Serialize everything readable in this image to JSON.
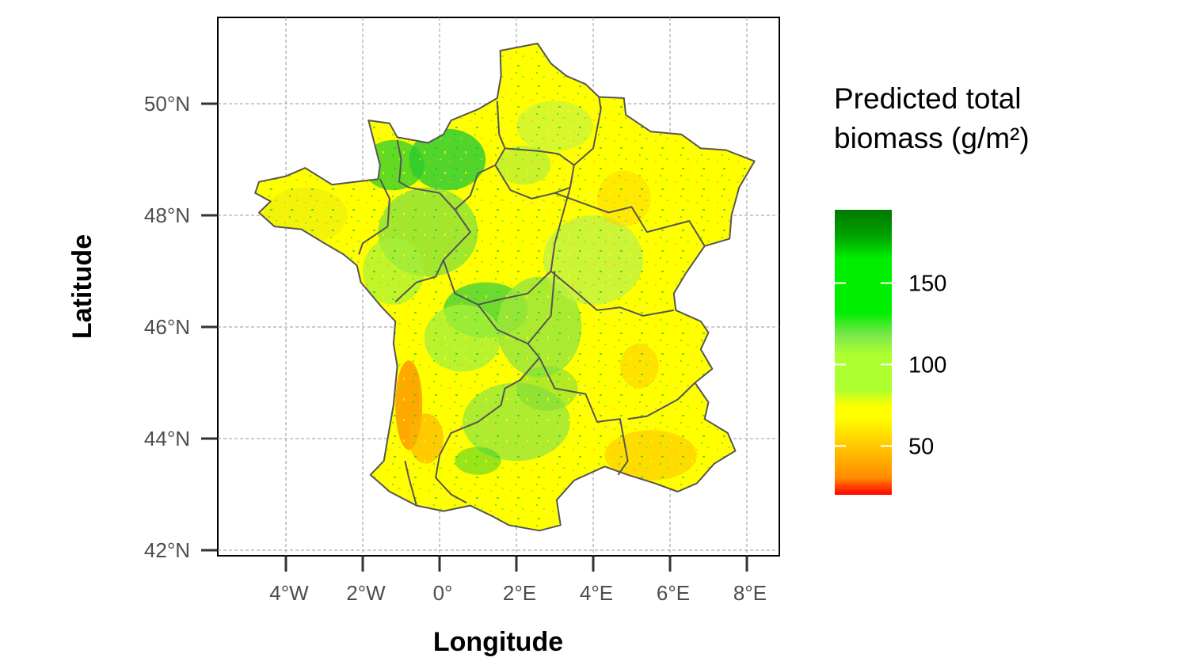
{
  "map": {
    "xlabel": "Longitude",
    "ylabel": "Latitude",
    "x_ticks": [
      "4°W",
      "2°W",
      "0°",
      "2°E",
      "4°E",
      "6°E",
      "8°E"
    ],
    "y_ticks": [
      "42°N",
      "44°N",
      "46°N",
      "48°N",
      "50°N"
    ],
    "x_range_deg": [
      -5.8,
      8.8
    ],
    "y_range_deg": [
      41.9,
      51.6
    ],
    "grid": true,
    "region": "France",
    "boundaries": "administrative regions"
  },
  "legend": {
    "title_line1": "Predicted total",
    "title_line2": "biomass (g/m²)",
    "ticks": [
      "150",
      "100",
      "50"
    ],
    "tick_values": [
      150,
      100,
      50
    ],
    "range": [
      20,
      195
    ],
    "placement": "right",
    "colors": [
      "#ff0000",
      "#ff8c00",
      "#ffff00",
      "#adff2f",
      "#00ee00",
      "#007a00"
    ]
  }
}
